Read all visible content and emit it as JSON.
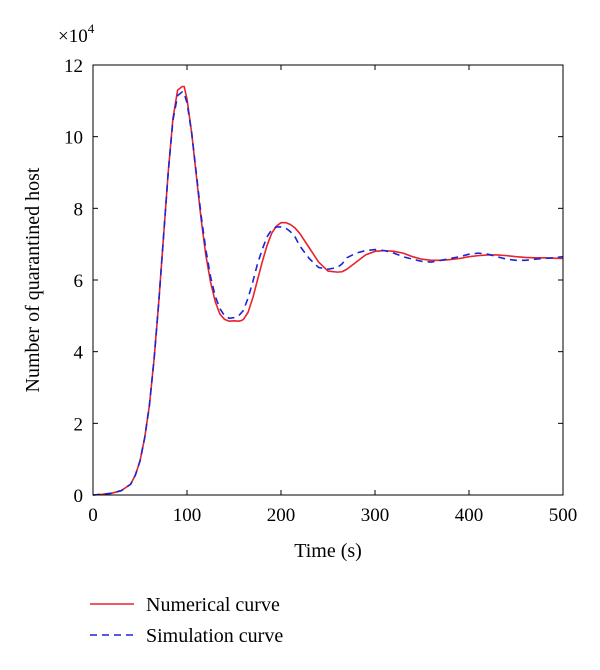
{
  "chart_data": {
    "type": "line",
    "xlabel": "Time (s)",
    "ylabel": "Number of quarantined host",
    "y_multiplier": {
      "base": "×10",
      "exponent": "4"
    },
    "xlim": [
      0,
      500
    ],
    "ylim": [
      0,
      12
    ],
    "xticks": [
      0,
      100,
      200,
      300,
      400,
      500
    ],
    "yticks": [
      0,
      2,
      4,
      6,
      8,
      10,
      12
    ],
    "grid": false,
    "legend_position": "below",
    "series": [
      {
        "name": "Numerical curve",
        "color": "#e8232a",
        "style": "solid",
        "x": [
          0,
          10,
          20,
          30,
          40,
          45,
          50,
          55,
          60,
          65,
          70,
          75,
          80,
          85,
          90,
          95,
          97,
          100,
          105,
          110,
          115,
          120,
          125,
          130,
          135,
          140,
          145,
          150,
          155,
          158,
          160,
          165,
          170,
          175,
          180,
          185,
          190,
          195,
          200,
          205,
          210,
          215,
          220,
          230,
          240,
          250,
          260,
          265,
          270,
          280,
          290,
          300,
          310,
          320,
          330,
          340,
          350,
          360,
          370,
          380,
          390,
          400,
          410,
          420,
          430,
          440,
          450,
          460,
          470,
          480,
          490,
          500
        ],
        "y": [
          0,
          0.02,
          0.05,
          0.12,
          0.3,
          0.55,
          0.95,
          1.6,
          2.5,
          3.8,
          5.4,
          7.2,
          9.0,
          10.5,
          11.3,
          11.4,
          11.4,
          11.05,
          10.1,
          8.9,
          7.7,
          6.7,
          5.95,
          5.4,
          5.05,
          4.9,
          4.85,
          4.86,
          4.85,
          4.87,
          4.9,
          5.1,
          5.5,
          6.0,
          6.5,
          6.95,
          7.3,
          7.5,
          7.6,
          7.6,
          7.55,
          7.45,
          7.3,
          6.9,
          6.5,
          6.25,
          6.22,
          6.23,
          6.3,
          6.5,
          6.7,
          6.8,
          6.82,
          6.8,
          6.75,
          6.65,
          6.58,
          6.55,
          6.55,
          6.57,
          6.6,
          6.65,
          6.68,
          6.7,
          6.7,
          6.68,
          6.65,
          6.63,
          6.62,
          6.62,
          6.61,
          6.6
        ]
      },
      {
        "name": "Simulation curve",
        "color": "#1c23d8",
        "style": "dashed",
        "x": [
          0,
          10,
          20,
          30,
          40,
          45,
          50,
          55,
          60,
          65,
          70,
          75,
          80,
          85,
          90,
          95,
          97,
          100,
          105,
          110,
          115,
          120,
          125,
          130,
          135,
          140,
          145,
          150,
          155,
          160,
          165,
          170,
          175,
          180,
          185,
          190,
          195,
          200,
          205,
          210,
          215,
          220,
          230,
          240,
          250,
          260,
          265,
          270,
          280,
          290,
          300,
          310,
          320,
          330,
          340,
          350,
          360,
          370,
          380,
          390,
          400,
          410,
          420,
          430,
          440,
          450,
          460,
          470,
          480,
          490,
          500
        ],
        "y": [
          0,
          0.02,
          0.05,
          0.12,
          0.3,
          0.55,
          0.95,
          1.6,
          2.5,
          3.8,
          5.4,
          7.2,
          9.0,
          10.45,
          11.15,
          11.25,
          11.2,
          10.95,
          10.1,
          8.95,
          7.8,
          6.85,
          6.1,
          5.55,
          5.2,
          5.0,
          4.93,
          4.95,
          5.0,
          5.15,
          5.5,
          5.95,
          6.45,
          6.85,
          7.2,
          7.4,
          7.48,
          7.48,
          7.45,
          7.35,
          7.2,
          6.95,
          6.6,
          6.35,
          6.3,
          6.35,
          6.45,
          6.62,
          6.75,
          6.82,
          6.85,
          6.82,
          6.75,
          6.65,
          6.58,
          6.52,
          6.5,
          6.55,
          6.6,
          6.65,
          6.72,
          6.75,
          6.72,
          6.65,
          6.58,
          6.55,
          6.55,
          6.58,
          6.6,
          6.62,
          6.65
        ]
      }
    ]
  }
}
